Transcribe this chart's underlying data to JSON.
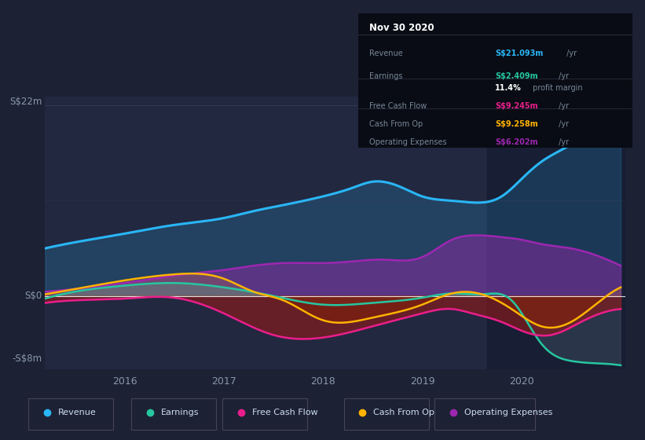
{
  "bg_color": "#1c2133",
  "chart_bg_color": "#222840",
  "dark_overlay_color": "#151a2e",
  "title": "Nov 30 2020",
  "ylabel_top": "S$22m",
  "ylabel_zero": "S$0",
  "ylabel_bottom": "-S$8m",
  "ylim": [
    -8.5,
    23
  ],
  "xlim": [
    2015.2,
    2021.05
  ],
  "x_ticks": [
    2016,
    2017,
    2018,
    2019,
    2020
  ],
  "colors": {
    "revenue": "#29b6f6",
    "earnings": "#26c6a0",
    "free_cash_flow": "#e91e8c",
    "cash_from_op": "#ffb300",
    "operating_expenses": "#9c27b0"
  },
  "revenue_x": [
    2015.2,
    2015.5,
    2016.0,
    2016.5,
    2017.0,
    2017.3,
    2017.6,
    2018.0,
    2018.3,
    2018.5,
    2018.8,
    2019.0,
    2019.3,
    2019.5,
    2019.8,
    2020.0,
    2020.2,
    2020.5,
    2020.8,
    2021.0
  ],
  "revenue_y": [
    5.5,
    6.2,
    7.2,
    8.2,
    9.0,
    9.8,
    10.5,
    11.5,
    12.5,
    13.2,
    12.5,
    11.5,
    11.0,
    10.8,
    11.5,
    13.5,
    15.5,
    17.5,
    20.0,
    21.5
  ],
  "earnings_x": [
    2015.2,
    2015.5,
    2016.0,
    2016.5,
    2017.0,
    2017.5,
    2018.0,
    2018.5,
    2019.0,
    2019.3,
    2019.6,
    2019.9,
    2020.2,
    2020.5,
    2020.8,
    2021.0
  ],
  "earnings_y": [
    -0.3,
    0.5,
    1.2,
    1.5,
    1.0,
    0.0,
    -1.0,
    -0.8,
    -0.2,
    0.3,
    0.2,
    -0.5,
    -5.5,
    -7.5,
    -7.8,
    -8.0
  ],
  "fcf_x": [
    2015.2,
    2015.5,
    2016.0,
    2016.5,
    2017.0,
    2017.5,
    2018.0,
    2018.5,
    2019.0,
    2019.3,
    2019.5,
    2019.8,
    2020.0,
    2020.3,
    2020.6,
    2020.8,
    2021.0
  ],
  "fcf_y": [
    -0.8,
    -0.5,
    -0.3,
    -0.2,
    -2.0,
    -4.5,
    -4.8,
    -3.5,
    -2.0,
    -1.5,
    -2.0,
    -3.0,
    -4.0,
    -4.5,
    -3.0,
    -2.0,
    -1.5
  ],
  "cashop_x": [
    2015.2,
    2015.5,
    2016.0,
    2016.5,
    2017.0,
    2017.3,
    2017.6,
    2018.0,
    2018.5,
    2019.0,
    2019.3,
    2019.6,
    2019.9,
    2020.2,
    2020.5,
    2020.8,
    2021.0
  ],
  "cashop_y": [
    0.2,
    0.8,
    1.8,
    2.5,
    2.0,
    0.5,
    -0.5,
    -2.8,
    -2.5,
    -1.0,
    0.3,
    0.2,
    -1.5,
    -3.5,
    -3.0,
    -0.5,
    1.0
  ],
  "opex_x": [
    2015.2,
    2015.5,
    2016.0,
    2016.3,
    2016.6,
    2017.0,
    2017.3,
    2017.6,
    2018.0,
    2018.3,
    2018.6,
    2019.0,
    2019.3,
    2019.5,
    2019.8,
    2020.0,
    2020.2,
    2020.5,
    2020.8,
    2021.0
  ],
  "opex_y": [
    0.5,
    0.8,
    1.5,
    2.0,
    2.5,
    3.0,
    3.5,
    3.8,
    3.8,
    4.0,
    4.2,
    4.5,
    6.5,
    7.0,
    6.8,
    6.5,
    6.0,
    5.5,
    4.5,
    3.5
  ]
}
